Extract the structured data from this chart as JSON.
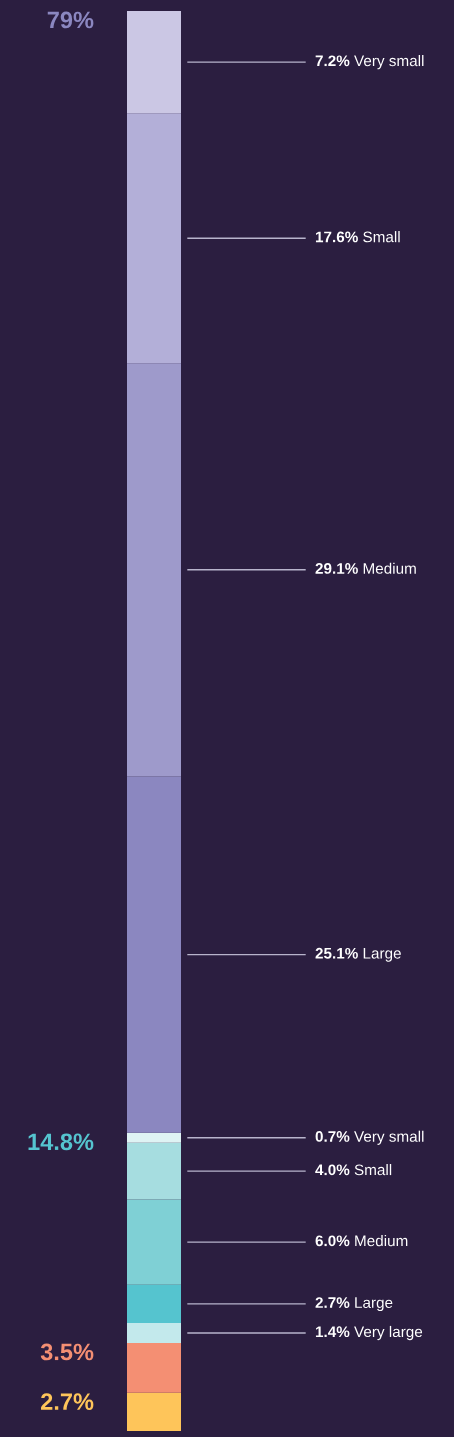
{
  "chart_data": {
    "type": "bar",
    "stacked": true,
    "categories": [
      null
    ],
    "ylim": [
      0,
      100
    ],
    "series": [
      {
        "color": "#fec55a",
        "values": [
          2.7
        ]
      },
      {
        "color": "#f48f73",
        "values": [
          3.5
        ]
      },
      {
        "name": "Very large",
        "color": "#c3e9ec",
        "values": [
          1.4
        ],
        "value_labels": [
          "1.4%"
        ]
      },
      {
        "name": "Large",
        "color": "#55c4cf",
        "values": [
          2.7
        ],
        "value_labels": [
          "2.7%"
        ]
      },
      {
        "name": "Medium",
        "color": "#7fd0d5",
        "values": [
          6.0
        ],
        "value_labels": [
          "6.0%"
        ]
      },
      {
        "name": "Small",
        "color": "#a6dde0",
        "values": [
          4.0
        ],
        "value_labels": [
          "4.0%"
        ]
      },
      {
        "name": "Very small",
        "color": "#dff3f4",
        "values": [
          0.7
        ],
        "value_labels": [
          "0.7%"
        ]
      },
      {
        "name": "Large",
        "color": "#8b87c0",
        "values": [
          25.1
        ],
        "value_labels": [
          "25.1%"
        ]
      },
      {
        "name": "Medium",
        "color": "#9e9acb",
        "values": [
          29.1
        ],
        "value_labels": [
          "29.1%"
        ]
      },
      {
        "name": "Small",
        "color": "#b3afd8",
        "values": [
          17.6
        ],
        "value_labels": [
          "17.6%"
        ]
      },
      {
        "name": "Very small",
        "color": "#cbc7e4",
        "values": [
          7.2
        ],
        "value_labels": [
          "7.2%"
        ]
      }
    ],
    "annotations": [
      "79%",
      "14.8%",
      "3.5%",
      "2.7%"
    ]
  }
}
